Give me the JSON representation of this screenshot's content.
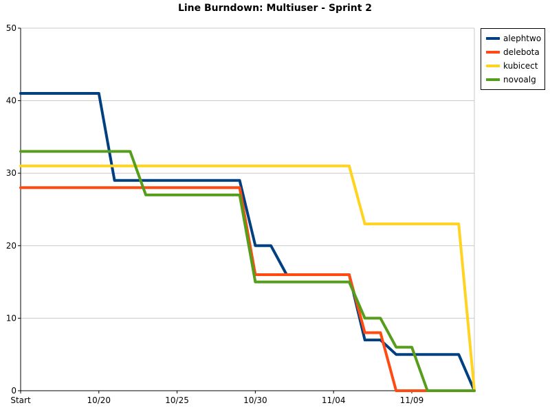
{
  "chart_data": {
    "type": "line",
    "title": "Line Burndown: Multiuser - Sprint 2",
    "x_tick_labels": [
      "Start",
      "10/20",
      "10/25",
      "10/30",
      "11/04",
      "11/09"
    ],
    "x": [
      0,
      5,
      6,
      7,
      8,
      9,
      10,
      14,
      15,
      16,
      17,
      21,
      22,
      23,
      24,
      25,
      26,
      27,
      28,
      29
    ],
    "ylim": [
      0,
      50
    ],
    "y_ticks": [
      0,
      10,
      20,
      30,
      40,
      50
    ],
    "grid": true,
    "legend_position": "top-right",
    "series": [
      {
        "name": "alephtwo",
        "color": "#004080",
        "values": [
          41,
          41,
          29,
          29,
          29,
          29,
          29,
          29,
          20,
          20,
          16,
          16,
          7,
          7,
          5,
          5,
          5,
          5,
          5,
          0
        ]
      },
      {
        "name": "delebota",
        "color": "#ff4a12",
        "values": [
          28,
          28,
          28,
          28,
          28,
          28,
          28,
          28,
          16,
          16,
          16,
          16,
          8,
          8,
          0,
          0,
          0,
          0,
          0,
          0
        ]
      },
      {
        "name": "kubicect",
        "color": "#ffd320",
        "values": [
          31,
          31,
          31,
          31,
          31,
          31,
          31,
          31,
          31,
          31,
          31,
          31,
          23,
          23,
          23,
          23,
          23,
          23,
          23,
          0
        ]
      },
      {
        "name": "novoalg",
        "color": "#579d1c",
        "values": [
          33,
          33,
          33,
          33,
          27,
          27,
          27,
          27,
          15,
          15,
          15,
          15,
          10,
          10,
          6,
          6,
          0,
          0,
          0,
          0
        ]
      }
    ]
  }
}
